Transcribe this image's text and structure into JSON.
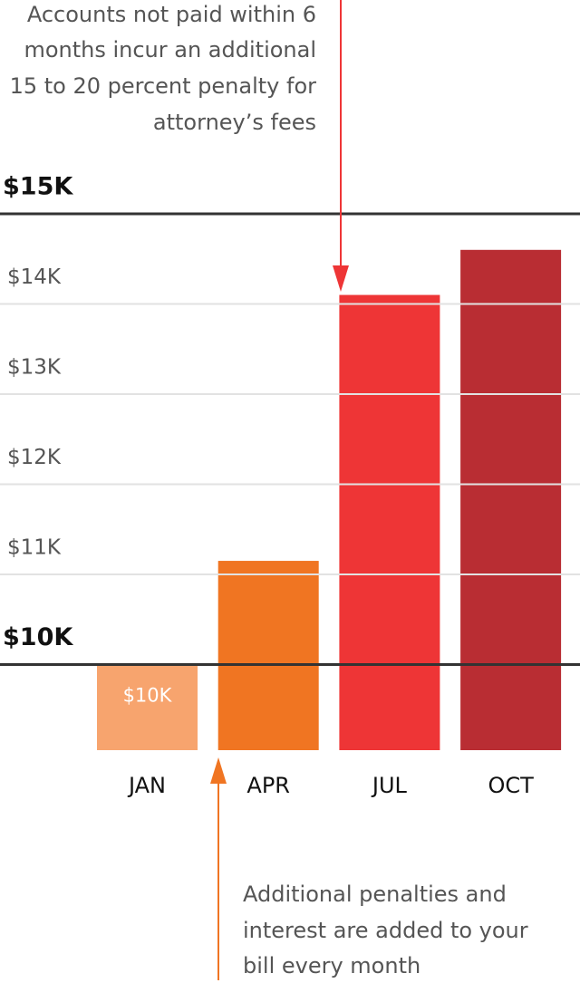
{
  "chart_data": {
    "type": "bar",
    "categories": [
      "JAN",
      "APR",
      "JUL",
      "OCT"
    ],
    "values": [
      10,
      11.15,
      14.1,
      14.6
    ],
    "value_labels": [
      "$10K",
      null,
      null,
      null
    ],
    "colors": [
      "#f7a46e",
      "#f07522",
      "#ee3536",
      "#b92d33"
    ],
    "ylim": [
      9.05,
      15
    ],
    "yticks": [
      {
        "value": 10,
        "label": "$10K"
      },
      {
        "value": 11,
        "label": "$11K"
      },
      {
        "value": 12,
        "label": "$12K"
      },
      {
        "value": 13,
        "label": "$13K"
      },
      {
        "value": 14,
        "label": "$14K"
      },
      {
        "value": 15,
        "label": "$15K"
      }
    ],
    "grid": true,
    "annotations": [
      {
        "lines": [
          "Accounts not paid within 6",
          "months incur an additional",
          "15 to 20 percent penalty for",
          "attorney’s fees"
        ]
      },
      {
        "lines": [
          "Additional penalties and",
          "interest are added to your",
          "bill every month"
        ]
      }
    ]
  }
}
